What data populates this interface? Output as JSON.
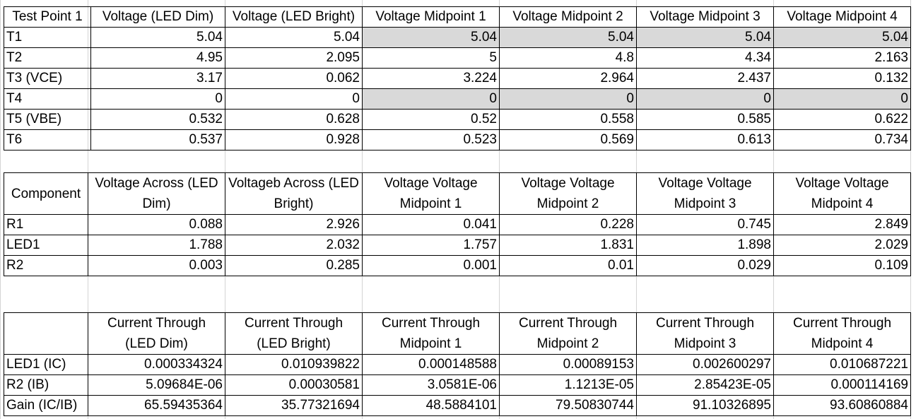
{
  "table1": {
    "headers": [
      "Test Point 1",
      "Voltage (LED Dim)",
      "Voltage (LED Bright)",
      "Voltage Midpoint 1",
      "Voltage Midpoint 2",
      "Voltage Midpoint 3",
      "Voltage Midpoint 4"
    ],
    "rows": [
      {
        "label": "T1",
        "values": [
          "5.04",
          "5.04",
          "5.04",
          "5.04",
          "5.04",
          "5.04"
        ]
      },
      {
        "label": "T2",
        "values": [
          "4.95",
          "2.095",
          "5",
          "4.8",
          "4.34",
          "2.163"
        ]
      },
      {
        "label": "T3 (VCE)",
        "values": [
          "3.17",
          "0.062",
          "3.224",
          "2.964",
          "2.437",
          "0.132"
        ]
      },
      {
        "label": "T4",
        "values": [
          "0",
          "0",
          "0",
          "0",
          "0",
          "0"
        ]
      },
      {
        "label": "T5 (VBE)",
        "values": [
          "0.532",
          "0.628",
          "0.52",
          "0.558",
          "0.585",
          "0.622"
        ]
      },
      {
        "label": "T6",
        "values": [
          "0.537",
          "0.928",
          "0.523",
          "0.569",
          "0.613",
          "0.734"
        ]
      }
    ],
    "highlight_color": "#d9d9d9"
  },
  "table2": {
    "headers": [
      "Component",
      "Voltage Across (LED Dim)",
      "Voltageb Across (LED Bright)",
      "Voltage Voltage Midpoint 1",
      "Voltage Voltage Midpoint 2",
      "Voltage Voltage Midpoint 3",
      "Voltage Voltage Midpoint 4"
    ],
    "rows": [
      {
        "label": "R1",
        "values": [
          "0.088",
          "2.926",
          "0.041",
          "0.228",
          "0.745",
          "2.849"
        ]
      },
      {
        "label": "LED1",
        "values": [
          "1.788",
          "2.032",
          "1.757",
          "1.831",
          "1.898",
          "2.029"
        ]
      },
      {
        "label": "R2",
        "values": [
          "0.003",
          "0.285",
          "0.001",
          "0.01",
          "0.029",
          "0.109"
        ]
      }
    ]
  },
  "table3": {
    "headers": [
      "",
      "Current Through (LED Dim)",
      "Current Through (LED Bright)",
      "Current Through Midpoint 1",
      "Current Through Midpoint 2",
      "Current Through Midpoint 3",
      "Current Through Midpoint 4"
    ],
    "rows": [
      {
        "label": "LED1 (IC)",
        "values": [
          "0.000334324",
          "0.010939822",
          "0.000148588",
          "0.00089153",
          "0.002600297",
          "0.010687221"
        ]
      },
      {
        "label": "R2 (IB)",
        "values": [
          "5.09684E-06",
          "0.00030581",
          "3.0581E-06",
          "1.1213E-05",
          "2.85423E-05",
          "0.000114169"
        ]
      },
      {
        "label": "Gain (IC/IB)",
        "values": [
          "65.59435364",
          "35.77321694",
          "48.5884101",
          "79.50830744",
          "91.10326895",
          "93.60860884"
        ]
      }
    ]
  }
}
